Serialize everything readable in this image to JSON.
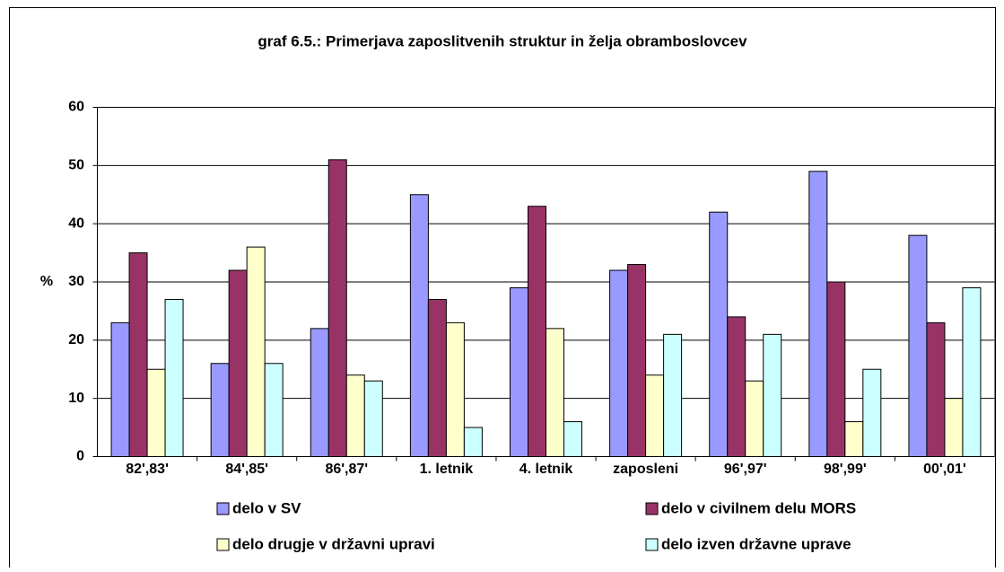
{
  "chart_data": {
    "type": "bar",
    "title": "graf 6.5.: Primerjava zaposlitvenih struktur in želja obramboslovcev",
    "y_label": "%",
    "categories": [
      "82',83'",
      "84',85'",
      "86',87'",
      "1. letnik",
      "4. letnik",
      "zaposleni",
      "96',97'",
      "98',99'",
      "00',01'"
    ],
    "series": [
      {
        "name": "delo v SV",
        "color": "#9999ff",
        "values": [
          23,
          16,
          22,
          45,
          29,
          32,
          42,
          49,
          38
        ]
      },
      {
        "name": "delo v civilnem delu MORS",
        "color": "#993366",
        "values": [
          35,
          32,
          51,
          27,
          43,
          33,
          24,
          30,
          23
        ]
      },
      {
        "name": "delo drugje v državni upravi",
        "color": "#ffffcc",
        "values": [
          15,
          36,
          14,
          23,
          22,
          14,
          13,
          6,
          10
        ]
      },
      {
        "name": "delo izven državne uprave",
        "color": "#ccffff",
        "values": [
          27,
          16,
          13,
          5,
          6,
          21,
          21,
          15,
          29
        ]
      }
    ],
    "ylim": [
      0,
      60
    ],
    "yticks": [
      0,
      10,
      20,
      30,
      40,
      50,
      60
    ],
    "grid": true
  }
}
